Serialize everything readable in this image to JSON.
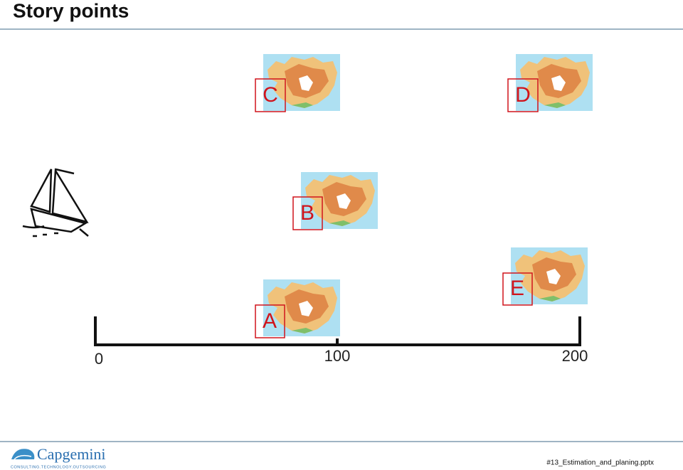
{
  "header": {
    "title": "Story points"
  },
  "items": [
    {
      "label": "C"
    },
    {
      "label": "D"
    },
    {
      "label": "B"
    },
    {
      "label": "E"
    },
    {
      "label": "A"
    }
  ],
  "axis": {
    "ticks": [
      0,
      100,
      200
    ]
  },
  "footer": {
    "logo": "Capgemini",
    "tagline": "CONSULTING.TECHNOLOGY.OUTSOURCING",
    "file": "#13_Estimation_and_planing.pptx"
  }
}
